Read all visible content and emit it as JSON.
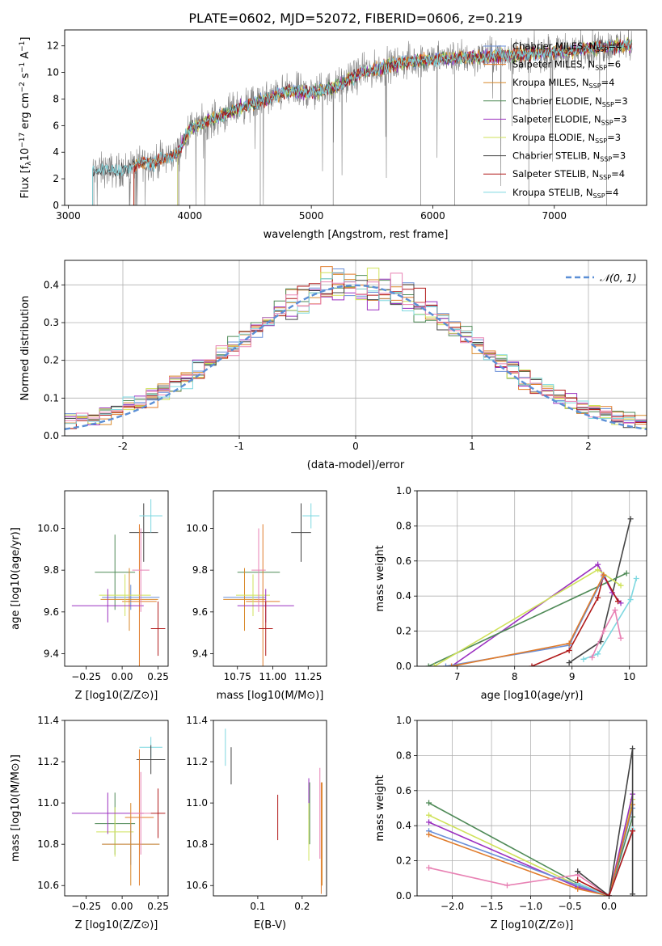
{
  "title": "PLATE=0602, MJD=52072, FIBERID=0606, z=0.219",
  "colors": {
    "Chabrier MILES": "#6a8fd8",
    "Salpeter MILES": "#e07b2a",
    "Kroupa MILES": "#d98a2c",
    "Chabrier ELODIE": "#4f8a57",
    "Salpeter ELODIE": "#9b30c0",
    "Kroupa ELODIE": "#cfe25a",
    "Chabrier STELIB": "#444444",
    "Salpeter STELIB": "#b11a1a",
    "Kroupa STELIB": "#7fd8e0",
    "pink": "#e882b4",
    "data": "#808080",
    "normal": "#5b8fd6"
  },
  "chart_data": [
    {
      "id": "spectrum",
      "type": "line",
      "xlabel": "wavelength [Angstrom, rest frame]",
      "ylabel": "Flux [f_λ10^-17 erg cm^-2 s^-1 A^-1]",
      "xlim": [
        2970,
        7760
      ],
      "ylim": [
        0,
        13.2
      ],
      "xticks": [
        3000,
        4000,
        5000,
        6000,
        7000
      ],
      "yticks": [
        0,
        2,
        4,
        6,
        8,
        10,
        12
      ],
      "legend": "upper right",
      "continuum": [
        [
          3200,
          2.5
        ],
        [
          3300,
          2.7
        ],
        [
          3400,
          2.6
        ],
        [
          3500,
          2.8
        ],
        [
          3600,
          3.3
        ],
        [
          3700,
          3.2
        ],
        [
          3800,
          3.5
        ],
        [
          3900,
          3.9
        ],
        [
          4000,
          5.8
        ],
        [
          4200,
          6.5
        ],
        [
          4400,
          7.3
        ],
        [
          4600,
          7.9
        ],
        [
          4800,
          8.6
        ],
        [
          5000,
          8.5
        ],
        [
          5200,
          8.9
        ],
        [
          5400,
          9.9
        ],
        [
          5600,
          10.4
        ],
        [
          5800,
          10.8
        ],
        [
          6000,
          11.0
        ],
        [
          6200,
          11.1
        ],
        [
          6400,
          11.2
        ],
        [
          6600,
          11.3
        ],
        [
          6800,
          11.4
        ],
        [
          7000,
          11.5
        ],
        [
          7200,
          11.7
        ],
        [
          7400,
          11.9
        ],
        [
          7500,
          12.0
        ],
        [
          7640,
          12.1
        ]
      ],
      "series": [
        {
          "name": "Chabrier MILES",
          "nssp": "4",
          "start": 3540
        },
        {
          "name": "Salpeter MILES",
          "nssp": "6",
          "start": 3540
        },
        {
          "name": "Kroupa MILES",
          "nssp": "4",
          "start": 3540
        },
        {
          "name": "Chabrier ELODIE",
          "nssp": "3",
          "start": 3900
        },
        {
          "name": "Salpeter ELODIE",
          "nssp": "3",
          "start": 3900
        },
        {
          "name": "Kroupa ELODIE",
          "nssp": "3",
          "start": 3900
        },
        {
          "name": "Chabrier STELIB",
          "nssp": "3",
          "start": 3200
        },
        {
          "name": "Salpeter STELIB",
          "nssp": "4",
          "start": 3540
        },
        {
          "name": "Kroupa STELIB",
          "nssp": "4",
          "start": 3200
        }
      ]
    },
    {
      "id": "residuals",
      "type": "histogram",
      "xlabel": "(data-model)/error",
      "ylabel": "Normed distribution",
      "xlim": [
        -2.5,
        2.5
      ],
      "ylim": [
        0,
        0.465
      ],
      "xticks": [
        -2,
        -1,
        0,
        1,
        2
      ],
      "yticks": [
        0.0,
        0.1,
        0.2,
        0.3,
        0.4
      ],
      "legend": "upper right",
      "legend_label": "𝒩(0, 1)",
      "bin_width": 0.1,
      "grid": true
    },
    {
      "id": "age_vs_Z",
      "type": "errorbar",
      "xlabel": "Z [log10(Z/Z⊙)]",
      "ylabel": "age  [log10(age/yr)]",
      "xlim": [
        -0.4,
        0.32
      ],
      "ylim": [
        9.34,
        10.18
      ],
      "xticks": [
        -0.25,
        0.0,
        0.25
      ],
      "xticklabels": [
        "−0.25",
        "0.00",
        "0.25"
      ],
      "yticks": [
        9.4,
        9.6,
        9.8,
        10.0
      ],
      "points": [
        {
          "series": "Chabrier STELIB",
          "x": 0.15,
          "y": 9.98,
          "xerr": 0.1,
          "yerr": 0.14
        },
        {
          "series": "Kroupa STELIB",
          "x": 0.2,
          "y": 10.06,
          "xerr": 0.08,
          "yerr": 0.08
        },
        {
          "series": "Chabrier ELODIE",
          "x": -0.05,
          "y": 9.79,
          "xerr": 0.14,
          "yerr": 0.18
        },
        {
          "series": "Chabrier MILES",
          "x": 0.06,
          "y": 9.67,
          "xerr": 0.2,
          "yerr": 0.06
        },
        {
          "series": "Kroupa MILES",
          "x": 0.05,
          "y": 9.66,
          "xerr": 0.2,
          "yerr": 0.15
        },
        {
          "series": "Salpeter MILES",
          "x": 0.12,
          "y": 9.65,
          "xerr": 0.12,
          "yerr": 0.37
        },
        {
          "series": "Kroupa ELODIE",
          "x": 0.02,
          "y": 9.68,
          "xerr": 0.18,
          "yerr": 0.1
        },
        {
          "series": "Salpeter ELODIE",
          "x": -0.1,
          "y": 9.63,
          "xerr": 0.25,
          "yerr": 0.08
        },
        {
          "series": "pink",
          "x": 0.13,
          "y": 9.8,
          "xerr": 0.06,
          "yerr": 0.2
        },
        {
          "series": "Salpeter STELIB",
          "x": 0.25,
          "y": 9.52,
          "xerr": 0.05,
          "yerr": 0.13
        }
      ]
    },
    {
      "id": "age_vs_mass",
      "type": "errorbar",
      "xlabel": "mass [log10(M/M⊙)]",
      "ylabel": "",
      "xlim": [
        10.58,
        11.38
      ],
      "ylim": [
        9.34,
        10.18
      ],
      "xticks": [
        10.75,
        11.0,
        11.25
      ],
      "xticklabels": [
        "10.75",
        "11.00",
        "11.25"
      ],
      "yticks": [
        9.4,
        9.6,
        9.8,
        10.0
      ],
      "points": [
        {
          "series": "Chabrier STELIB",
          "x": 11.2,
          "y": 9.98,
          "xerr": 0.07,
          "yerr": 0.14
        },
        {
          "series": "Kroupa STELIB",
          "x": 11.27,
          "y": 10.06,
          "xerr": 0.06,
          "yerr": 0.06
        },
        {
          "series": "Chabrier ELODIE",
          "x": 10.9,
          "y": 9.79,
          "xerr": 0.15,
          "yerr": 0.1
        },
        {
          "series": "Chabrier MILES",
          "x": 10.8,
          "y": 9.67,
          "xerr": 0.15,
          "yerr": 0.06
        },
        {
          "series": "Kroupa MILES",
          "x": 10.8,
          "y": 9.66,
          "xerr": 0.15,
          "yerr": 0.15
        },
        {
          "series": "Salpeter MILES",
          "x": 10.93,
          "y": 9.65,
          "xerr": 0.12,
          "yerr": 0.37
        },
        {
          "series": "Kroupa ELODIE",
          "x": 10.86,
          "y": 9.68,
          "xerr": 0.12,
          "yerr": 0.1
        },
        {
          "series": "Salpeter ELODIE",
          "x": 10.95,
          "y": 9.63,
          "xerr": 0.2,
          "yerr": 0.08
        },
        {
          "series": "pink",
          "x": 10.9,
          "y": 9.8,
          "xerr": 0.05,
          "yerr": 0.2
        },
        {
          "series": "Salpeter STELIB",
          "x": 10.95,
          "y": 9.52,
          "xerr": 0.05,
          "yerr": 0.13
        }
      ]
    },
    {
      "id": "weight_vs_age",
      "type": "line",
      "xlabel": "age  [log10(age/yr)]",
      "ylabel": "mass weight",
      "xlim": [
        6.3,
        10.3
      ],
      "ylim": [
        0,
        1.0
      ],
      "xticks": [
        7,
        8,
        9,
        10
      ],
      "yticks": [
        0.0,
        0.2,
        0.4,
        0.6,
        0.8,
        1.0
      ],
      "grid": true,
      "series": [
        {
          "name": "Chabrier STELIB",
          "x": [
            8.95,
            9.5,
            10.02
          ],
          "y": [
            0.02,
            0.14,
            0.84
          ]
        },
        {
          "name": "Salpeter ELODIE",
          "x": [
            6.9,
            9.45,
            9.7,
            9.85
          ],
          "y": [
            0.0,
            0.58,
            0.42,
            0.36
          ]
        },
        {
          "name": "Chabrier ELODIE",
          "x": [
            6.5,
            9.95
          ],
          "y": [
            0.0,
            0.53
          ]
        },
        {
          "name": "Kroupa ELODIE",
          "x": [
            6.6,
            9.45,
            9.85
          ],
          "y": [
            0.0,
            0.55,
            0.46
          ]
        },
        {
          "name": "Kroupa STELIB",
          "x": [
            9.2,
            9.45,
            10.02,
            10.12
          ],
          "y": [
            0.04,
            0.07,
            0.38,
            0.5
          ]
        },
        {
          "name": "Salpeter STELIB",
          "x": [
            8.3,
            8.95,
            9.45,
            9.55,
            9.8
          ],
          "y": [
            0.0,
            0.09,
            0.39,
            0.52,
            0.37
          ]
        },
        {
          "name": "Chabrier MILES",
          "x": [
            6.8,
            8.95,
            9.55
          ],
          "y": [
            0.0,
            0.12,
            0.51
          ]
        },
        {
          "name": "Salpeter MILES",
          "x": [
            6.9,
            8.95,
            9.55
          ],
          "y": [
            0.0,
            0.13,
            0.52
          ]
        },
        {
          "name": "pink",
          "x": [
            9.35,
            9.55,
            9.75,
            9.85
          ],
          "y": [
            0.05,
            0.2,
            0.32,
            0.16
          ]
        }
      ]
    },
    {
      "id": "mass_vs_Z",
      "type": "errorbar",
      "xlabel": "Z [log10(Z/Z⊙)]",
      "ylabel": "mass [log10(M/M⊙)]",
      "xlim": [
        -0.4,
        0.32
      ],
      "ylim": [
        10.55,
        11.4
      ],
      "xticks": [
        -0.25,
        0.0,
        0.25
      ],
      "xticklabels": [
        "−0.25",
        "0.00",
        "0.25"
      ],
      "yticks": [
        10.6,
        10.8,
        11.0,
        11.2,
        11.4
      ],
      "points": [
        {
          "series": "Kroupa STELIB",
          "x": 0.2,
          "y": 11.27,
          "xerr": 0.08,
          "yerr": 0.05
        },
        {
          "series": "Chabrier STELIB",
          "x": 0.2,
          "y": 11.21,
          "xerr": 0.1,
          "yerr": 0.07
        },
        {
          "series": "Chabrier ELODIE",
          "x": -0.05,
          "y": 10.9,
          "xerr": 0.14,
          "yerr": 0.15
        },
        {
          "series": "Kroupa ELODIE",
          "x": -0.05,
          "y": 10.86,
          "xerr": 0.13,
          "yerr": 0.12
        },
        {
          "series": "Salpeter ELODIE",
          "x": -0.1,
          "y": 10.95,
          "xerr": 0.25,
          "yerr": 0.1
        },
        {
          "series": "Chabrier MILES",
          "x": 0.06,
          "y": 10.8,
          "xerr": 0.2,
          "yerr": 0.1
        },
        {
          "series": "Kroupa MILES",
          "x": 0.06,
          "y": 10.8,
          "xerr": 0.2,
          "yerr": 0.2
        },
        {
          "series": "Salpeter MILES",
          "x": 0.12,
          "y": 10.93,
          "xerr": 0.1,
          "yerr": 0.33
        },
        {
          "series": "pink",
          "x": 0.13,
          "y": 10.95,
          "xerr": 0.07,
          "yerr": 0.2
        },
        {
          "series": "Salpeter STELIB",
          "x": 0.25,
          "y": 10.95,
          "xerr": 0.05,
          "yerr": 0.12
        }
      ]
    },
    {
      "id": "mass_vs_ebv",
      "type": "errorbar",
      "xlabel": "E(B-V)",
      "ylabel": "",
      "xlim": [
        0.0,
        0.255
      ],
      "ylim": [
        10.55,
        11.4
      ],
      "xticks": [
        0.1,
        0.2
      ],
      "xticklabels": [
        "0.1",
        "0.2"
      ],
      "yticks": [
        10.6,
        10.8,
        11.0,
        11.2,
        11.4
      ],
      "points": [
        {
          "series": "Kroupa STELIB",
          "x": 0.027,
          "y": 11.27,
          "xerr": 0,
          "yerr": 0.09
        },
        {
          "series": "Chabrier STELIB",
          "x": 0.04,
          "y": 11.18,
          "xerr": 0,
          "yerr": 0.09
        },
        {
          "series": "Salpeter STELIB",
          "x": 0.145,
          "y": 10.93,
          "xerr": 0,
          "yerr": 0.11
        },
        {
          "series": "Salpeter ELODIE",
          "x": 0.215,
          "y": 11.02,
          "xerr": 0,
          "yerr": 0.1
        },
        {
          "series": "Kroupa ELODIE",
          "x": 0.215,
          "y": 10.86,
          "xerr": 0,
          "yerr": 0.14
        },
        {
          "series": "Chabrier ELODIE",
          "x": 0.217,
          "y": 10.95,
          "xerr": 0,
          "yerr": 0.15
        },
        {
          "series": "pink",
          "x": 0.24,
          "y": 10.95,
          "xerr": 0,
          "yerr": 0.22
        },
        {
          "series": "Salpeter MILES",
          "x": 0.243,
          "y": 10.83,
          "xerr": 0,
          "yerr": 0.27
        },
        {
          "series": "Kroupa MILES",
          "x": 0.245,
          "y": 10.85,
          "xerr": 0,
          "yerr": 0.25
        }
      ]
    },
    {
      "id": "weight_vs_Z",
      "type": "line",
      "xlabel": "Z [log10(Z/Z⊙)]",
      "ylabel": "mass weight",
      "xlim": [
        -2.45,
        0.48
      ],
      "ylim": [
        0,
        1.0
      ],
      "xticks": [
        -2.0,
        -1.5,
        -1.0,
        -0.5,
        0.0
      ],
      "xticklabels": [
        "−2.0",
        "−1.5",
        "−1.0",
        "−0.5",
        "0.0"
      ],
      "yticks": [
        0.0,
        0.2,
        0.4,
        0.6,
        0.8,
        1.0
      ],
      "grid": true,
      "series": [
        {
          "name": "Chabrier ELODIE",
          "x": [
            -2.3,
            -0.4,
            0.0,
            0.3
          ],
          "y": [
            0.53,
            0.07,
            0.0,
            0.45
          ]
        },
        {
          "name": "Kroupa ELODIE",
          "x": [
            -2.3,
            -0.4,
            0.0,
            0.3
          ],
          "y": [
            0.46,
            0.06,
            0.0,
            0.55
          ]
        },
        {
          "name": "Salpeter ELODIE",
          "x": [
            -2.3,
            -0.4,
            0.0,
            0.3
          ],
          "y": [
            0.42,
            0.05,
            0.0,
            0.58
          ]
        },
        {
          "name": "Chabrier MILES",
          "x": [
            -2.3,
            -0.4,
            0.0,
            0.3
          ],
          "y": [
            0.37,
            0.06,
            0.0,
            0.5
          ]
        },
        {
          "name": "Salpeter MILES",
          "x": [
            -2.3,
            -0.4,
            0.0,
            0.3
          ],
          "y": [
            0.35,
            0.04,
            0.0,
            0.52
          ]
        },
        {
          "name": "pink",
          "x": [
            -2.3,
            -1.3,
            -0.4,
            0.0,
            0.3
          ],
          "y": [
            0.16,
            0.06,
            0.12,
            0.0,
            0.37
          ]
        },
        {
          "name": "Chabrier STELIB",
          "x": [
            -0.4,
            0.0,
            0.3,
            0.3
          ],
          "y": [
            0.14,
            0.0,
            0.84,
            0.01
          ]
        },
        {
          "name": "Kroupa STELIB",
          "x": [
            -0.4,
            0.0,
            0.3
          ],
          "y": [
            0.07,
            0.0,
            0.38
          ]
        },
        {
          "name": "Salpeter STELIB",
          "x": [
            -0.4,
            0.0,
            0.3
          ],
          "y": [
            0.09,
            0.0,
            0.37
          ]
        }
      ]
    }
  ]
}
